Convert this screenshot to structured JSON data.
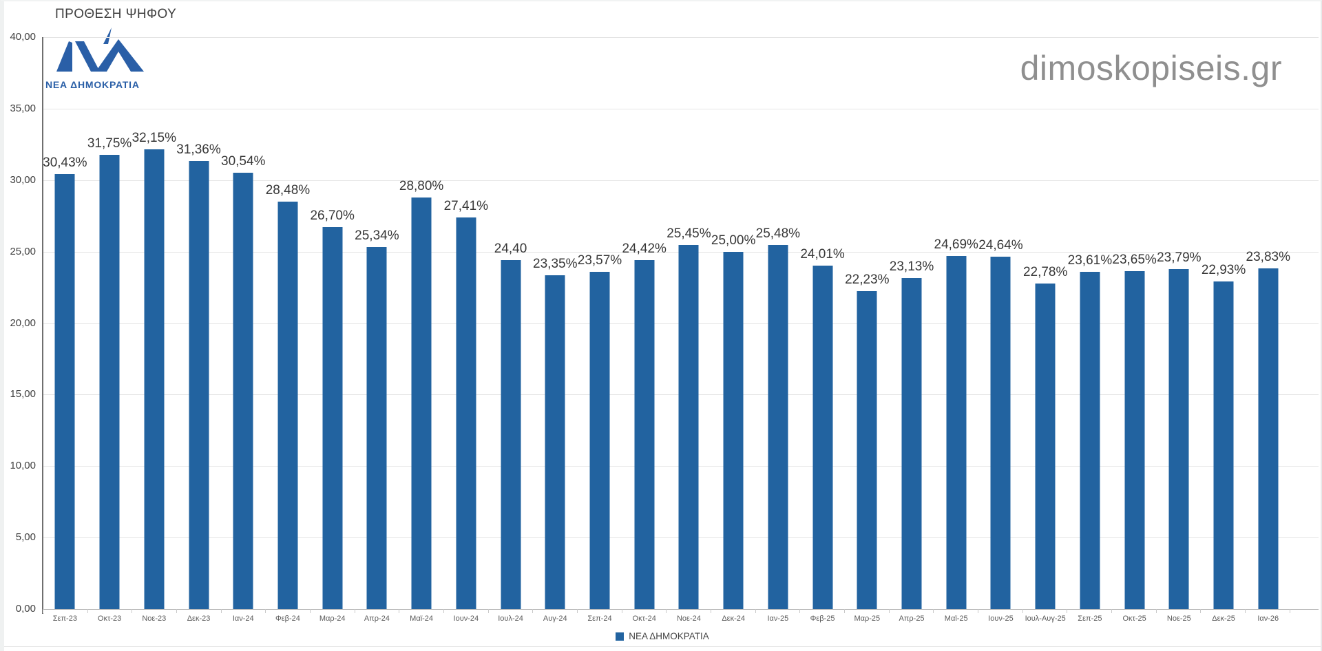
{
  "header": {
    "title": "ΠΡΟΘΕΣΗ ΨΗΦΟΥ",
    "logo_text": "ΝΕΑ ΔΗΜΟΚΡΑΤΙΑ",
    "watermark": "dimoskopiseis.gr"
  },
  "legend": {
    "label": "ΝΕΑ ΔΗΜΟΚΡΑΤΙΑ"
  },
  "colors": {
    "bar": "#2263a0",
    "logo_blue": "#2a5fa7",
    "value_label_text": "#373737",
    "axis_text": "#595959",
    "watermark_gray": "#8f8f8f",
    "gridline": "#e4e4e4"
  },
  "chart_data": {
    "type": "bar",
    "title": "ΠΡΟΘΕΣΗ ΨΗΦΟΥ",
    "series_name": "ΝΕΑ ΔΗΜΟΚΡΑΤΙΑ",
    "categories": [
      "Σεπ-23",
      "Οκτ-23",
      "Νοε-23",
      "Δεκ-23",
      "Ιαν-24",
      "Φεβ-24",
      "Μαρ-24",
      "Απρ-24",
      "Μαϊ-24",
      "Ιουν-24",
      "Ιουλ-24",
      "Αυγ-24",
      "Σεπ-24",
      "Οκτ-24",
      "Νοε-24",
      "Δεκ-24",
      "Ιαν-25",
      "Φεβ-25",
      "Μαρ-25",
      "Απρ-25",
      "Μαϊ-25",
      "Ιουν-25",
      "Ιουλ-Αυγ-25",
      "Σεπ-25",
      "Οκτ-25",
      "Νοε-25",
      "Δεκ-25",
      "Ιαν-26"
    ],
    "values": [
      30.43,
      31.75,
      32.15,
      31.36,
      30.54,
      28.48,
      26.7,
      25.34,
      28.8,
      27.41,
      24.4,
      23.35,
      23.57,
      24.42,
      25.45,
      25.0,
      25.48,
      24.01,
      22.23,
      23.13,
      24.69,
      24.64,
      22.78,
      23.61,
      23.65,
      23.79,
      22.93,
      23.83
    ],
    "value_labels": [
      "30,43%",
      "31,75%",
      "32,15%",
      "31,36%",
      "30,54%",
      "28,48%",
      "26,70%",
      "25,34%",
      "28,80%",
      "27,41%",
      "24,40",
      "23,35%",
      "23,57%",
      "24,42%",
      "25,45%",
      "25,00%",
      "25,48%",
      "24,01%",
      "22,23%",
      "23,13%",
      "24,69%",
      "24,64%",
      "22,78%",
      "23,61%",
      "23,65%",
      "23,79%",
      "22,93%",
      "23,83%"
    ],
    "ylim": [
      0,
      40
    ],
    "ytick_values": [
      40,
      35,
      30,
      25,
      20,
      15,
      10,
      5,
      0
    ],
    "ytick_labels": [
      "40,00",
      "35,00",
      "30,00",
      "25,00",
      "20,00",
      "15,00",
      "10,00",
      "5,00",
      "0,00"
    ],
    "grid": "horizontal",
    "legend_position": "bottom",
    "bar_color": "#2263a0"
  }
}
